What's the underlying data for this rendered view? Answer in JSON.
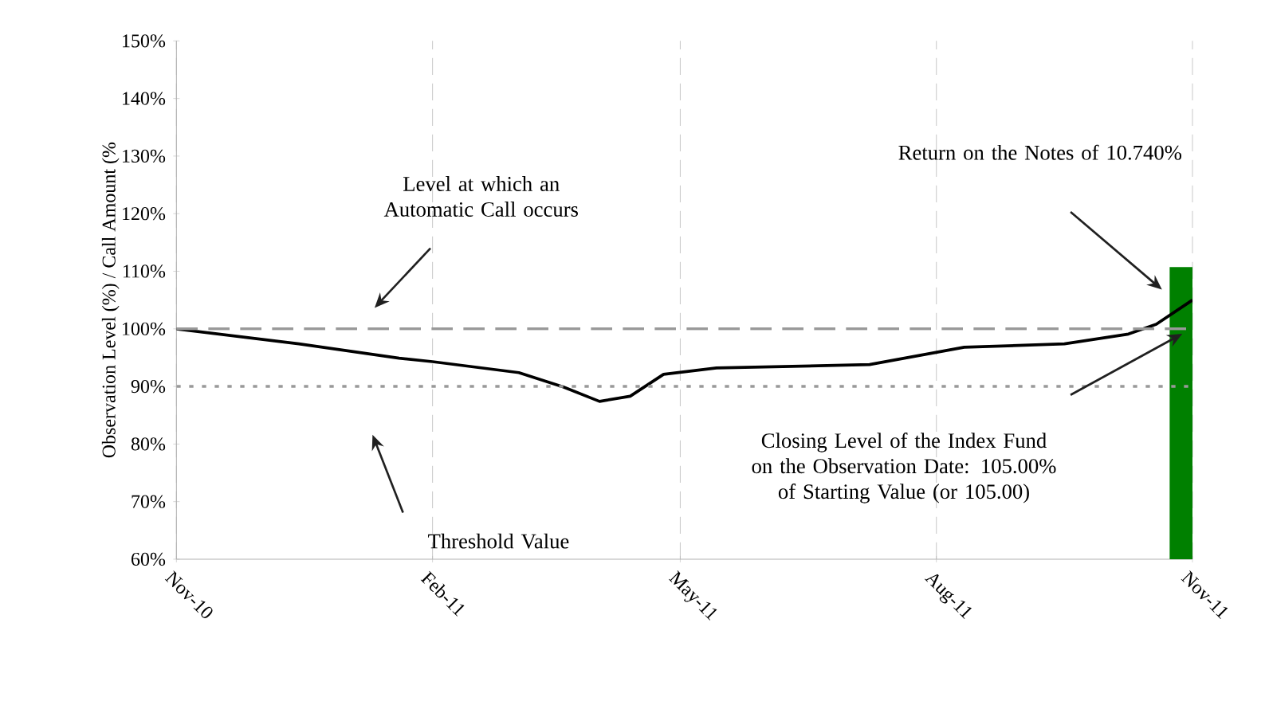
{
  "chart_data": {
    "type": "line",
    "ylabel": "Observation Level (%) / Call Amount (%",
    "x": [
      "2010-11-01",
      "2010-12-15",
      "2011-01-20",
      "2011-02-01",
      "2011-03-04",
      "2011-03-20",
      "2011-04-02",
      "2011-04-13",
      "2011-04-25",
      "2011-05-14",
      "2011-07-08",
      "2011-08-11",
      "2011-09-16",
      "2011-10-09",
      "2011-10-19",
      "2011-11-01"
    ],
    "series": [
      {
        "color": "#000000",
        "line_style": "solid",
        "values": [
          100,
          97.4,
          94.9,
          94.3,
          92.4,
          89.9,
          87.4,
          88.3,
          92.1,
          93.2,
          93.8,
          96.8,
          97.4,
          99.1,
          100.8,
          105
        ]
      },
      {
        "type": "bar",
        "color": "#008000",
        "x": [
          "2011-10-28"
        ],
        "values": [
          110.74
        ]
      }
    ],
    "xlim": [
      "2010-11-01",
      "2011-11-01"
    ],
    "xticks": [
      {
        "value": "2010-11-01",
        "label": "Nov-10"
      },
      {
        "value": "2011-02-01",
        "label": "Feb-11"
      },
      {
        "value": "2011-05-01",
        "label": "May-11"
      },
      {
        "value": "2011-08-01",
        "label": "Aug-11"
      },
      {
        "value": "2011-11-01",
        "label": "Nov-11"
      }
    ],
    "ylim": [
      60,
      150
    ],
    "yticks": [
      {
        "value": 60,
        "label": "60%"
      },
      {
        "value": 70,
        "label": "70%"
      },
      {
        "value": 80,
        "label": "80%"
      },
      {
        "value": 90,
        "label": "90%"
      },
      {
        "value": 100,
        "label": "100%"
      },
      {
        "value": 110,
        "label": "110%"
      },
      {
        "value": 120,
        "label": "120%"
      },
      {
        "value": 130,
        "label": "130%"
      },
      {
        "value": 140,
        "label": "140%"
      },
      {
        "value": 150,
        "label": "150%"
      }
    ],
    "grid": "x",
    "ref_lines": [
      {
        "axis": "y",
        "value": 100,
        "color": "#999999",
        "line_style": "dashed"
      },
      {
        "axis": "y",
        "value": 90,
        "color": "#999999",
        "line_style": "dotted"
      }
    ],
    "annotations": [
      "Level at which an Automatic Call occurs",
      "Return on the Notes of 10.740%",
      "Closing Level of the Index Fund on the Observation Date: 105.00% of Starting Value (or 105.00)",
      "Threshold Value"
    ]
  }
}
